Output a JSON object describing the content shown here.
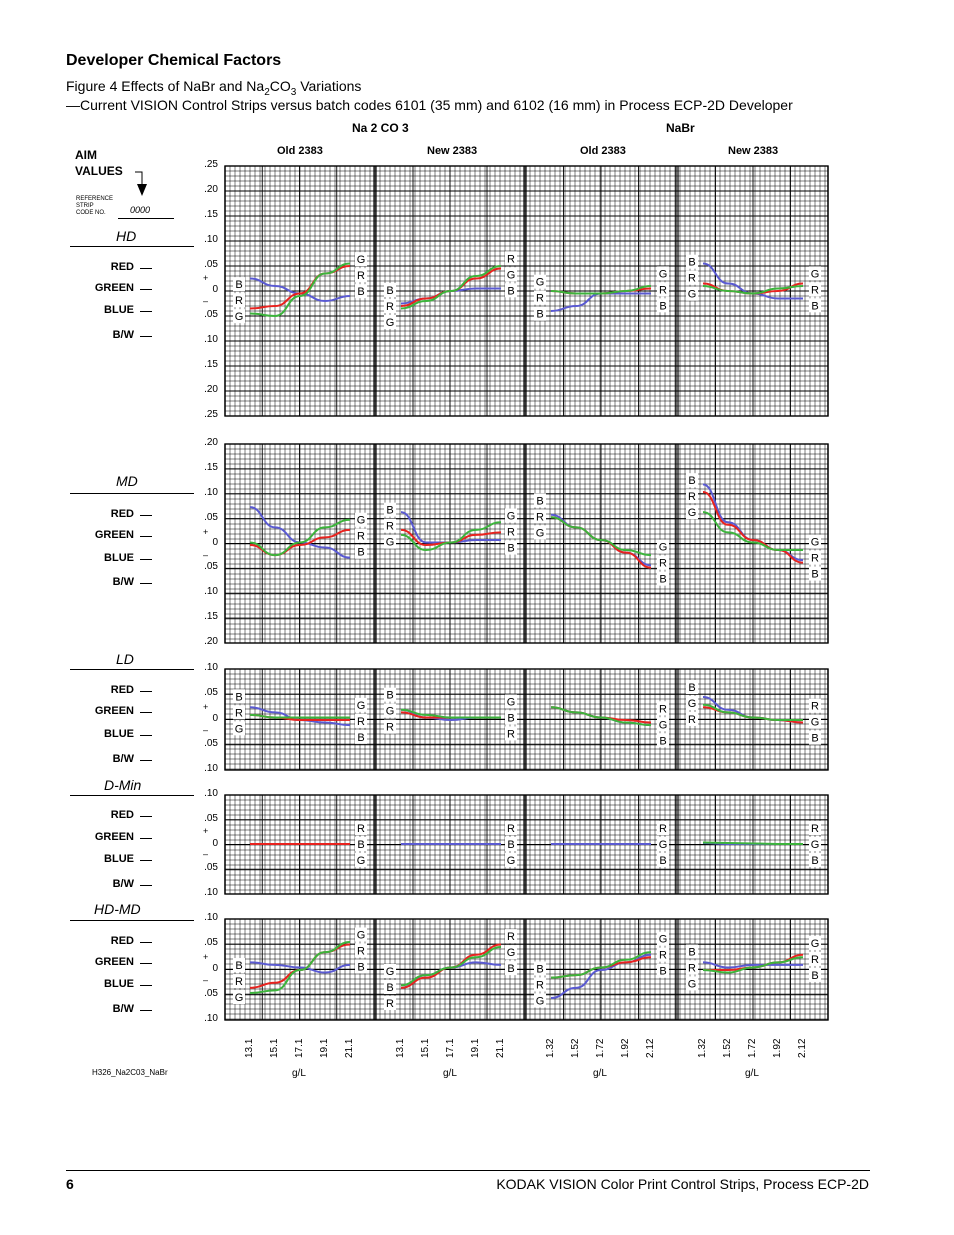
{
  "section_title": "Developer Chemical Factors",
  "figure_caption": {
    "line1_prefix": "Figure 4 Effects of NaBr and Na",
    "sub1": "2",
    "line1_mid": "CO",
    "sub2": "3",
    "line1_suffix": " Variations",
    "line2": "—Current VISION Control Strips versus batch codes 6101 (35 mm) and 6102 (16 mm) in Process ECP-2D Developer"
  },
  "group_headers": {
    "na2co3": "Na 2 CO 3",
    "nabr": "NaBr"
  },
  "column_headers": [
    "Old 2383",
    "New 2383",
    "Old 2383",
    "New 2383"
  ],
  "aim": {
    "line1": "AIM",
    "line2": "VALUES",
    "ref_label_1": "REFERENCE",
    "ref_label_2": "STRIP",
    "ref_label_3": "CODE NO.",
    "ref_code": "0000"
  },
  "row_labels": [
    "RED",
    "GREEN",
    "BLUE",
    "B/W"
  ],
  "regions": [
    {
      "label": "HD",
      "ticks": [
        ".25",
        ".20",
        ".15",
        ".10",
        ".05",
        "0",
        ".05",
        ".10",
        ".15",
        ".20",
        ".25"
      ]
    },
    {
      "label": "MD",
      "ticks": [
        ".20",
        ".15",
        ".10",
        ".05",
        "0",
        ".05",
        ".10",
        ".15",
        ".20"
      ]
    },
    {
      "label": "LD",
      "ticks": [
        ".10",
        ".05",
        "0",
        ".05",
        ".10"
      ]
    },
    {
      "label": "D-Min",
      "ticks": [
        ".10",
        ".05",
        "0",
        ".05",
        ".10"
      ]
    },
    {
      "label": "HD-MD",
      "ticks": [
        ".10",
        ".05",
        "0",
        ".05",
        ".10"
      ]
    }
  ],
  "plus_sign": "+",
  "minus_sign": "–",
  "x_ticks": [
    [
      "13.1",
      "15.1",
      "17.1",
      "19.1",
      "21.1"
    ],
    [
      "13.1",
      "15.1",
      "17.1",
      "19.1",
      "21.1"
    ],
    [
      "1.32",
      "1.52",
      "1.72",
      "1.92",
      "2.12"
    ],
    [
      "1.32",
      "1.52",
      "1.72",
      "1.92",
      "2.12"
    ]
  ],
  "x_unit": "g/L",
  "figure_id": "H326_Na2C03_NaBr",
  "footer": {
    "page_number": "6",
    "doc_title": "KODAK VISION Color Print Control Strips, Process ECP-2D"
  },
  "colors": {
    "red": "#e8231f",
    "green": "#3cb43c",
    "blue": "#5a5ad2",
    "grid": "#000000"
  },
  "chart_data": [
    {
      "type": "line",
      "region": "HD",
      "panel": "Na2CO3 Old 2383",
      "x": [
        13.1,
        15.1,
        17.1,
        19.1,
        21.1
      ],
      "series": [
        {
          "name": "R",
          "values": [
            -0.035,
            -0.03,
            -0.005,
            0.035,
            0.05
          ]
        },
        {
          "name": "G",
          "values": [
            -0.045,
            -0.05,
            -0.01,
            0.035,
            0.055
          ]
        },
        {
          "name": "B",
          "values": [
            0.025,
            0.01,
            -0.005,
            -0.02,
            -0.01
          ]
        }
      ],
      "start_labels": [
        "B",
        "R",
        "G"
      ],
      "end_labels": [
        "G",
        "R",
        "B"
      ]
    },
    {
      "type": "line",
      "region": "HD",
      "panel": "Na2CO3 New 2383",
      "x": [
        13.1,
        15.1,
        17.1,
        19.1,
        21.1
      ],
      "series": [
        {
          "name": "R",
          "values": [
            -0.03,
            -0.015,
            0.0,
            0.025,
            0.045
          ]
        },
        {
          "name": "G",
          "values": [
            -0.035,
            -0.02,
            0.0,
            0.03,
            0.05
          ]
        },
        {
          "name": "B",
          "values": [
            -0.025,
            -0.015,
            0.0,
            0.005,
            0.005
          ]
        }
      ],
      "start_labels": [
        "B",
        "R",
        "G"
      ],
      "end_labels": [
        "R",
        "G",
        "B"
      ]
    },
    {
      "type": "line",
      "region": "HD",
      "panel": "NaBr Old 2383",
      "x": [
        1.32,
        1.52,
        1.72,
        1.92,
        2.12
      ],
      "series": [
        {
          "name": "R",
          "values": [
            0.0,
            -0.005,
            -0.005,
            0.0,
            0.005
          ]
        },
        {
          "name": "G",
          "values": [
            0.0,
            -0.005,
            -0.005,
            0.0,
            0.01
          ]
        },
        {
          "name": "B",
          "values": [
            -0.04,
            -0.03,
            -0.005,
            -0.005,
            -0.005
          ]
        }
      ],
      "start_labels": [
        "G",
        "R",
        "B"
      ],
      "end_labels": [
        "G",
        "R",
        "B"
      ]
    },
    {
      "type": "line",
      "region": "HD",
      "panel": "NaBr New 2383",
      "x": [
        1.32,
        1.52,
        1.72,
        1.92,
        2.12
      ],
      "series": [
        {
          "name": "R",
          "values": [
            0.015,
            0.0,
            -0.005,
            0.0,
            0.015
          ]
        },
        {
          "name": "G",
          "values": [
            0.01,
            0.0,
            -0.005,
            0.005,
            0.01
          ]
        },
        {
          "name": "B",
          "values": [
            0.055,
            0.015,
            -0.005,
            -0.015,
            -0.015
          ]
        }
      ],
      "start_labels": [
        "B",
        "R",
        "G"
      ],
      "end_labels": [
        "G",
        "R",
        "B"
      ]
    },
    {
      "type": "line",
      "region": "MD",
      "panel": "Na2CO3 Old 2383",
      "x": [
        13.1,
        15.1,
        17.1,
        19.1,
        21.1
      ],
      "series": [
        {
          "name": "R",
          "values": [
            0.0,
            -0.02,
            0.0,
            0.015,
            0.03
          ]
        },
        {
          "name": "G",
          "values": [
            0.005,
            -0.02,
            0.005,
            0.035,
            0.05
          ]
        },
        {
          "name": "B",
          "values": [
            0.075,
            0.035,
            0.005,
            -0.005,
            -0.025
          ]
        }
      ],
      "start_labels": [],
      "end_labels": [
        "G",
        "R",
        "B"
      ]
    },
    {
      "type": "line",
      "region": "MD",
      "panel": "Na2CO3 New 2383",
      "x": [
        13.1,
        15.1,
        17.1,
        19.1,
        21.1
      ],
      "series": [
        {
          "name": "R",
          "values": [
            0.03,
            0.0,
            0.005,
            0.02,
            0.025
          ]
        },
        {
          "name": "G",
          "values": [
            0.02,
            -0.01,
            0.005,
            0.03,
            0.045
          ]
        },
        {
          "name": "B",
          "values": [
            0.065,
            0.005,
            0.005,
            0.01,
            0.01
          ]
        }
      ],
      "start_labels": [
        "B",
        "R",
        "G"
      ],
      "end_labels": [
        "G",
        "R",
        "B"
      ]
    },
    {
      "type": "line",
      "region": "MD",
      "panel": "NaBr Old 2383",
      "x": [
        1.32,
        1.52,
        1.72,
        1.92,
        2.12
      ],
      "series": [
        {
          "name": "R",
          "values": [
            0.055,
            0.035,
            0.01,
            -0.015,
            -0.045
          ]
        },
        {
          "name": "G",
          "values": [
            0.055,
            0.035,
            0.01,
            -0.01,
            -0.02
          ]
        },
        {
          "name": "B",
          "values": [
            0.06,
            0.035,
            0.01,
            -0.015,
            -0.04
          ]
        }
      ],
      "start_labels": [
        "B",
        "R",
        "G"
      ],
      "end_labels": [
        "G",
        "R",
        "B"
      ]
    },
    {
      "type": "line",
      "region": "MD",
      "panel": "NaBr New 2383",
      "x": [
        1.32,
        1.52,
        1.72,
        1.92,
        2.12
      ],
      "series": [
        {
          "name": "R",
          "values": [
            0.105,
            0.04,
            0.01,
            -0.01,
            -0.035
          ]
        },
        {
          "name": "G",
          "values": [
            0.065,
            0.025,
            0.005,
            -0.01,
            -0.01
          ]
        },
        {
          "name": "B",
          "values": [
            0.12,
            0.045,
            0.01,
            -0.01,
            -0.03
          ]
        }
      ],
      "start_labels": [
        "B",
        "R",
        "G"
      ],
      "end_labels": [
        "G",
        "R",
        "B"
      ]
    },
    {
      "type": "line",
      "region": "LD",
      "panel": "Na2CO3 Old 2383",
      "x": [
        13.1,
        15.1,
        17.1,
        19.1,
        21.1
      ],
      "series": [
        {
          "name": "R",
          "values": [
            0.01,
            0.005,
            0.0,
            0.0,
            0.0
          ]
        },
        {
          "name": "G",
          "values": [
            0.01,
            0.005,
            0.005,
            0.005,
            0.005
          ]
        },
        {
          "name": "B",
          "values": [
            0.025,
            0.015,
            0.0,
            -0.005,
            -0.01
          ]
        }
      ],
      "start_labels": [
        "B",
        "R",
        "G"
      ],
      "end_labels": [
        "G",
        "R",
        "B"
      ]
    },
    {
      "type": "line",
      "region": "LD",
      "panel": "Na2CO3 New 2383",
      "x": [
        13.1,
        15.1,
        17.1,
        19.1,
        21.1
      ],
      "series": [
        {
          "name": "R",
          "values": [
            0.015,
            0.005,
            0.005,
            0.005,
            0.005
          ]
        },
        {
          "name": "G",
          "values": [
            0.02,
            0.01,
            0.005,
            0.005,
            0.005
          ]
        },
        {
          "name": "B",
          "values": [
            0.02,
            0.005,
            0.0,
            0.005,
            0.005
          ]
        }
      ],
      "start_labels": [
        "B",
        "G",
        "R"
      ],
      "end_labels": [
        "G",
        "B",
        "R"
      ]
    },
    {
      "type": "line",
      "region": "LD",
      "panel": "NaBr Old 2383",
      "x": [
        1.32,
        1.52,
        1.72,
        1.92,
        2.12
      ],
      "series": [
        {
          "name": "R",
          "values": [
            0.025,
            0.015,
            0.005,
            0.0,
            -0.005
          ]
        },
        {
          "name": "G",
          "values": [
            0.025,
            0.015,
            0.005,
            -0.005,
            -0.01
          ]
        },
        {
          "name": "B",
          "values": [
            0.025,
            0.015,
            0.005,
            -0.005,
            -0.01
          ]
        }
      ],
      "start_labels": [],
      "end_labels": [
        "R",
        "G",
        "B"
      ]
    },
    {
      "type": "line",
      "region": "LD",
      "panel": "NaBr New 2383",
      "x": [
        1.32,
        1.52,
        1.72,
        1.92,
        2.12
      ],
      "series": [
        {
          "name": "R",
          "values": [
            0.025,
            0.015,
            0.005,
            0.0,
            -0.005
          ]
        },
        {
          "name": "G",
          "values": [
            0.03,
            0.015,
            0.005,
            0.0,
            0.0
          ]
        },
        {
          "name": "B",
          "values": [
            0.045,
            0.02,
            0.005,
            0.0,
            -0.005
          ]
        }
      ],
      "start_labels": [
        "B",
        "G",
        "R"
      ],
      "end_labels": [
        "R",
        "G",
        "B"
      ]
    },
    {
      "type": "line",
      "region": "D-Min",
      "panel": "Na2CO3 Old 2383",
      "x": [
        13.1,
        15.1,
        17.1,
        19.1,
        21.1
      ],
      "series": [
        {
          "name": "R",
          "values": [
            0.0,
            0.0,
            0.0,
            0.0,
            0.0
          ]
        },
        {
          "name": "B",
          "values": [
            0.0,
            0.0,
            0.0,
            0.0,
            0.0
          ]
        }
      ],
      "start_labels": [],
      "end_labels": [
        "R",
        "B",
        "G"
      ]
    },
    {
      "type": "line",
      "region": "D-Min",
      "panel": "Na2CO3 New 2383",
      "x": [
        13.1,
        15.1,
        17.1,
        19.1,
        21.1
      ],
      "series": [
        {
          "name": "B",
          "values": [
            0.0,
            0.0,
            0.0,
            0.0,
            0.0
          ]
        }
      ],
      "start_labels": [],
      "end_labels": [
        "R",
        "B",
        "G"
      ]
    },
    {
      "type": "line",
      "region": "D-Min",
      "panel": "NaBr Old 2383",
      "x": [
        1.32,
        1.52,
        1.72,
        1.92,
        2.12
      ],
      "series": [
        {
          "name": "B",
          "values": [
            0.0,
            0.0,
            0.0,
            0.0,
            0.0
          ]
        }
      ],
      "start_labels": [],
      "end_labels": [
        "R",
        "G",
        "B"
      ]
    },
    {
      "type": "line",
      "region": "D-Min",
      "panel": "NaBr New 2383",
      "x": [
        1.32,
        1.52,
        1.72,
        1.92,
        2.12
      ],
      "series": [
        {
          "name": "G",
          "values": [
            0.003,
            0.002,
            0.001,
            0.0,
            0.0
          ]
        },
        {
          "name": "B",
          "values": [
            0.002,
            0.0,
            0.0,
            0.0,
            0.0
          ]
        }
      ],
      "start_labels": [],
      "end_labels": [
        "R",
        "G",
        "B"
      ]
    },
    {
      "type": "line",
      "region": "HD-MD",
      "panel": "Na2CO3 Old 2383",
      "x": [
        13.1,
        15.1,
        17.1,
        19.1,
        21.1
      ],
      "series": [
        {
          "name": "R",
          "values": [
            -0.035,
            -0.025,
            0.0,
            0.035,
            0.05
          ]
        },
        {
          "name": "G",
          "values": [
            -0.045,
            -0.04,
            0.0,
            0.035,
            0.055
          ]
        },
        {
          "name": "B",
          "values": [
            0.015,
            0.01,
            0.005,
            -0.005,
            0.01
          ]
        }
      ],
      "start_labels": [
        "B",
        "R",
        "G"
      ],
      "end_labels": [
        "G",
        "R",
        "B"
      ]
    },
    {
      "type": "line",
      "region": "HD-MD",
      "panel": "Na2CO3 New 2383",
      "x": [
        13.1,
        15.1,
        17.1,
        19.1,
        21.1
      ],
      "series": [
        {
          "name": "R",
          "values": [
            -0.035,
            -0.015,
            0.005,
            0.03,
            0.05
          ]
        },
        {
          "name": "G",
          "values": [
            -0.03,
            -0.01,
            0.005,
            0.025,
            0.045
          ]
        },
        {
          "name": "B",
          "values": [
            -0.035,
            -0.01,
            0.005,
            0.015,
            0.01
          ]
        }
      ],
      "start_labels": [
        "G",
        "B",
        "R"
      ],
      "end_labels": [
        "R",
        "G",
        "B"
      ]
    },
    {
      "type": "line",
      "region": "HD-MD",
      "panel": "NaBr Old 2383",
      "x": [
        1.32,
        1.52,
        1.72,
        1.92,
        2.12
      ],
      "series": [
        {
          "name": "R",
          "values": [
            -0.015,
            -0.01,
            0.005,
            0.015,
            0.025
          ]
        },
        {
          "name": "G",
          "values": [
            -0.015,
            -0.01,
            0.005,
            0.02,
            0.035
          ]
        },
        {
          "name": "B",
          "values": [
            -0.055,
            -0.035,
            0.0,
            0.015,
            0.03
          ]
        }
      ],
      "start_labels": [
        "B",
        "R",
        "G"
      ],
      "end_labels": [
        "G",
        "R",
        "B"
      ]
    },
    {
      "type": "line",
      "region": "HD-MD",
      "panel": "NaBr New 2383",
      "x": [
        1.32,
        1.52,
        1.72,
        1.92,
        2.12
      ],
      "series": [
        {
          "name": "R",
          "values": [
            0.0,
            0.0,
            0.005,
            0.015,
            0.03
          ]
        },
        {
          "name": "G",
          "values": [
            0.0,
            -0.005,
            0.005,
            0.015,
            0.025
          ]
        },
        {
          "name": "B",
          "values": [
            0.015,
            0.005,
            0.01,
            0.01,
            0.01
          ]
        }
      ],
      "start_labels": [
        "B",
        "R",
        "G"
      ],
      "end_labels": [
        "G",
        "R",
        "B"
      ]
    }
  ]
}
